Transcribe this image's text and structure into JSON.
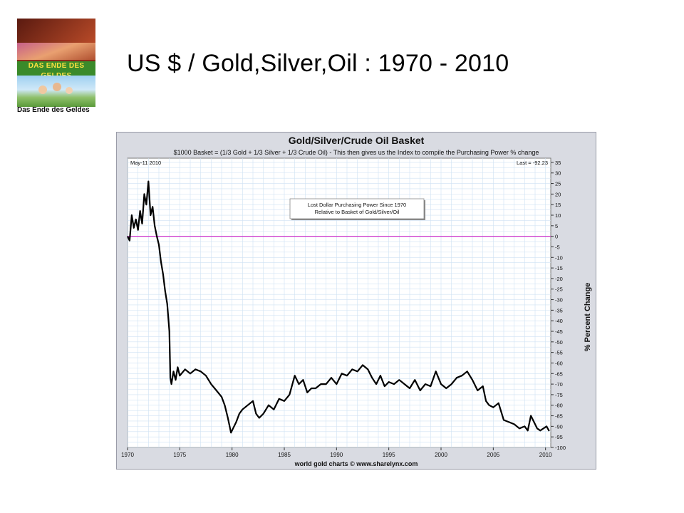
{
  "slide": {
    "title": "US $ / Gold,Silver,Oil  : 1970 - 2010",
    "book": {
      "cover_title": "DAS ENDE DES GELDES",
      "caption": "Das Ende des Geldes"
    }
  },
  "chart_data": {
    "type": "line",
    "title": "Gold/Silver/Crude Oil Basket",
    "subtitle": "$1000 Basket = (1/3 Gold + 1/3 Silver + 1/3 Crude Oil) - This then gives us the Index to compile the Purchasing Power % change",
    "date_label": "May-11  2010",
    "last_label": "Last = -92.23",
    "annotation": [
      "Lost Dollar Purchasing Power Since 1970",
      "Relative to Basket of Gold/Silver/Oil"
    ],
    "ylabel": "% Percent Change",
    "footer": "world gold charts © www.sharelynx.com",
    "xlim": [
      1970,
      2010.5
    ],
    "ylim": [
      -100,
      37
    ],
    "xticks": [
      1970,
      1975,
      1980,
      1985,
      1990,
      1995,
      2000,
      2005,
      2010
    ],
    "yticks": [
      35,
      30,
      25,
      20,
      15,
      10,
      5,
      0,
      -5,
      -10,
      -15,
      -20,
      -25,
      -30,
      -35,
      -40,
      -45,
      -50,
      -55,
      -60,
      -65,
      -70,
      -75,
      -80,
      -85,
      -90,
      -95,
      -100
    ],
    "grid": true,
    "reference_line": {
      "y": 0,
      "color": "#cc33cc"
    },
    "line_color": "#000000",
    "series": [
      {
        "x": [
          1970.0,
          1970.2,
          1970.4,
          1970.6,
          1970.8,
          1971.0,
          1971.2,
          1971.4,
          1971.6,
          1971.8,
          1972.0,
          1972.2,
          1972.4,
          1972.6,
          1972.8,
          1973.0,
          1973.2,
          1973.4,
          1973.6,
          1973.8,
          1974.0,
          1974.1,
          1974.2,
          1974.4,
          1974.6,
          1974.8,
          1975.0,
          1975.5,
          1976.0,
          1976.5,
          1977.0,
          1977.5,
          1978.0,
          1978.5,
          1979.0,
          1979.3,
          1979.6,
          1979.9,
          1980.1,
          1980.4,
          1980.7,
          1981.0,
          1981.5,
          1982.0,
          1982.3,
          1982.6,
          1983.0,
          1983.5,
          1984.0,
          1984.5,
          1985.0,
          1985.5,
          1986.0,
          1986.4,
          1986.8,
          1987.2,
          1987.6,
          1988.0,
          1988.5,
          1989.0,
          1989.5,
          1990.0,
          1990.5,
          1991.0,
          1991.5,
          1992.0,
          1992.5,
          1993.0,
          1993.4,
          1993.8,
          1994.2,
          1994.6,
          1995.0,
          1995.5,
          1996.0,
          1996.5,
          1997.0,
          1997.5,
          1998.0,
          1998.5,
          1999.0,
          1999.5,
          2000.0,
          2000.5,
          2001.0,
          2001.5,
          2002.0,
          2002.5,
          2003.0,
          2003.5,
          2004.0,
          2004.3,
          2004.6,
          2005.0,
          2005.5,
          2006.0,
          2006.5,
          2007.0,
          2007.5,
          2008.0,
          2008.3,
          2008.6,
          2008.9,
          2009.2,
          2009.5,
          2009.8,
          2010.1,
          2010.35
        ],
        "y": [
          0,
          -2,
          10,
          4,
          8,
          3,
          12,
          6,
          20,
          15,
          26,
          10,
          14,
          5,
          0,
          -4,
          -12,
          -18,
          -26,
          -32,
          -45,
          -67,
          -70,
          -64,
          -68,
          -62,
          -66,
          -63,
          -65,
          -63,
          -64,
          -66,
          -70,
          -73,
          -76,
          -80,
          -86,
          -93,
          -91,
          -88,
          -84,
          -82,
          -80,
          -78,
          -84,
          -86,
          -84,
          -80,
          -82,
          -77,
          -78,
          -75,
          -66,
          -70,
          -68,
          -74,
          -72,
          -72,
          -70,
          -70,
          -67,
          -70,
          -65,
          -66,
          -63,
          -64,
          -61,
          -63,
          -67,
          -70,
          -66,
          -71,
          -69,
          -70,
          -68,
          -70,
          -72,
          -68,
          -73,
          -70,
          -71,
          -64,
          -70,
          -72,
          -70,
          -67,
          -66,
          -64,
          -68,
          -73,
          -71,
          -78,
          -80,
          -81,
          -79,
          -87,
          -88,
          -89,
          -91,
          -90,
          -92,
          -85,
          -88,
          -91,
          -92,
          -91,
          -90,
          -92.23
        ]
      }
    ]
  }
}
